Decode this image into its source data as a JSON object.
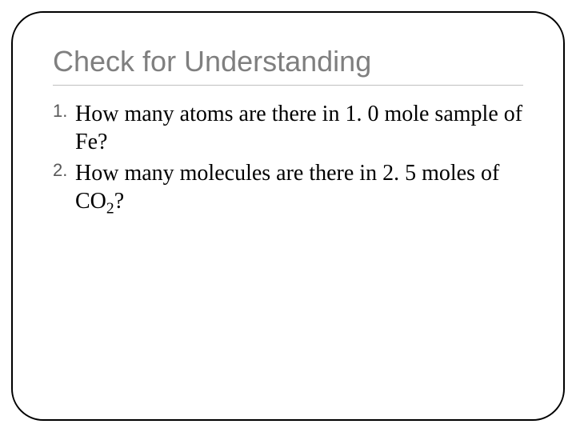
{
  "slide": {
    "title": "Check for Understanding",
    "title_color": "#7f7f7f",
    "title_fontsize": 36,
    "underline_color": "#bfbfbf",
    "frame_border_color": "#000000",
    "frame_border_radius": 40,
    "background_color": "#ffffff",
    "items": [
      {
        "marker": "1.",
        "text_parts": [
          {
            "t": "How many atoms are there in 1. 0 mole sample of Fe?",
            "sub": false
          }
        ]
      },
      {
        "marker": "2.",
        "text_parts": [
          {
            "t": "How many molecules are there in 2. 5 moles of CO",
            "sub": false
          },
          {
            "t": "2",
            "sub": true
          },
          {
            "t": "?",
            "sub": false
          }
        ]
      }
    ],
    "body_fontsize": 28,
    "body_color": "#000000",
    "marker_color": "#595959",
    "marker_fontsize": 22
  }
}
